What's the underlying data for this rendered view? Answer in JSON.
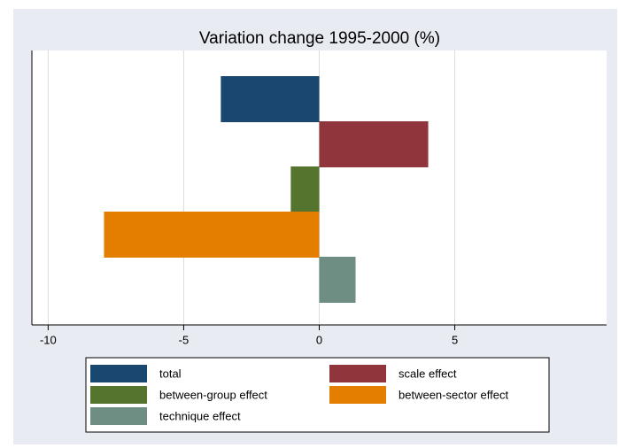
{
  "chart_data": {
    "type": "bar",
    "orientation": "horizontal",
    "title": "Variation change 1995-2000 (%)",
    "series": [
      {
        "name": "total",
        "color": "#1a476f",
        "values": [
          -3.63
        ]
      },
      {
        "name": "scale effect",
        "color": "#90353b",
        "values": [
          4.02
        ]
      },
      {
        "name": "between-group effect",
        "color": "#55752f",
        "values": [
          -1.05
        ]
      },
      {
        "name": "between-sector effect",
        "color": "#e37e00",
        "values": [
          -7.94
        ]
      },
      {
        "name": "technique effect",
        "color": "#6e8e84",
        "values": [
          1.34
        ]
      }
    ],
    "xlim": [
      -10.6,
      10.6
    ],
    "xticks": [
      -10,
      -5,
      0,
      5
    ],
    "grid": true,
    "legend": "bottom"
  }
}
